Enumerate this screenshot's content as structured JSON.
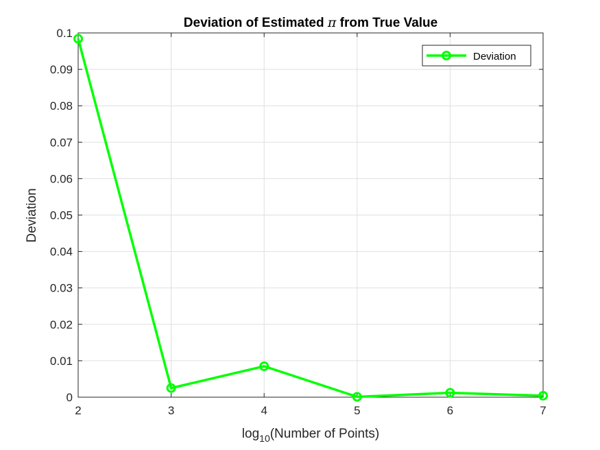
{
  "chart_data": {
    "type": "line",
    "title_before": "Deviation of Estimated ",
    "title_symbol": "π",
    "title_after": " from True Value",
    "xlabel_prefix": "log",
    "xlabel_sub": "10",
    "xlabel_suffix": "(Number of Points)",
    "ylabel": "Deviation",
    "xlim": [
      2,
      7
    ],
    "ylim": [
      0,
      0.1
    ],
    "xticks": [
      2,
      3,
      4,
      5,
      6,
      7
    ],
    "xtick_labels": [
      "2",
      "3",
      "4",
      "5",
      "6",
      "7"
    ],
    "yticks": [
      0,
      0.01,
      0.02,
      0.03,
      0.04,
      0.05,
      0.06,
      0.07,
      0.08,
      0.09,
      0.1
    ],
    "ytick_labels": [
      "0",
      "0.01",
      "0.02",
      "0.03",
      "0.04",
      "0.05",
      "0.06",
      "0.07",
      "0.08",
      "0.09",
      "0.1"
    ],
    "grid": true,
    "legend_position": "top-right",
    "series": [
      {
        "name": "Deviation",
        "color": "#00ff00",
        "marker": "circle",
        "x": [
          2,
          3,
          4,
          5,
          6,
          7
        ],
        "y": [
          0.0984,
          0.0025,
          0.0085,
          0.0001,
          0.0012,
          0.0004
        ]
      }
    ]
  }
}
